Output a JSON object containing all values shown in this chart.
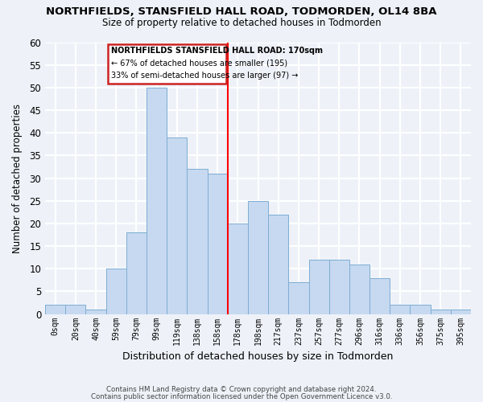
{
  "title": "NORTHFIELDS, STANSFIELD HALL ROAD, TODMORDEN, OL14 8BA",
  "subtitle": "Size of property relative to detached houses in Todmorden",
  "xlabel": "Distribution of detached houses by size in Todmorden",
  "ylabel": "Number of detached properties",
  "footer_line1": "Contains HM Land Registry data © Crown copyright and database right 2024.",
  "footer_line2": "Contains public sector information licensed under the Open Government Licence v3.0.",
  "bar_labels": [
    "0sqm",
    "20sqm",
    "40sqm",
    "59sqm",
    "79sqm",
    "99sqm",
    "119sqm",
    "138sqm",
    "158sqm",
    "178sqm",
    "198sqm",
    "217sqm",
    "237sqm",
    "257sqm",
    "277sqm",
    "296sqm",
    "316sqm",
    "336sqm",
    "356sqm",
    "375sqm",
    "395sqm"
  ],
  "bar_heights": [
    2,
    2,
    1,
    10,
    18,
    50,
    39,
    32,
    31,
    20,
    25,
    22,
    7,
    12,
    12,
    11,
    8,
    2,
    2,
    1,
    1
  ],
  "bar_color": "#c6d9f0",
  "bar_edge_color": "#7eadd4",
  "vline_color": "red",
  "vline_x": 8.5,
  "ylim": [
    0,
    60
  ],
  "yticks": [
    0,
    5,
    10,
    15,
    20,
    25,
    30,
    35,
    40,
    45,
    50,
    55,
    60
  ],
  "annotation_title": "NORTHFIELDS STANSFIELD HALL ROAD: 170sqm",
  "annotation_line2": "← 67% of detached houses are smaller (195)",
  "annotation_line3": "33% of semi-detached houses are larger (97) →",
  "background_color": "#eef2f8",
  "grid_color": "#ffffff"
}
